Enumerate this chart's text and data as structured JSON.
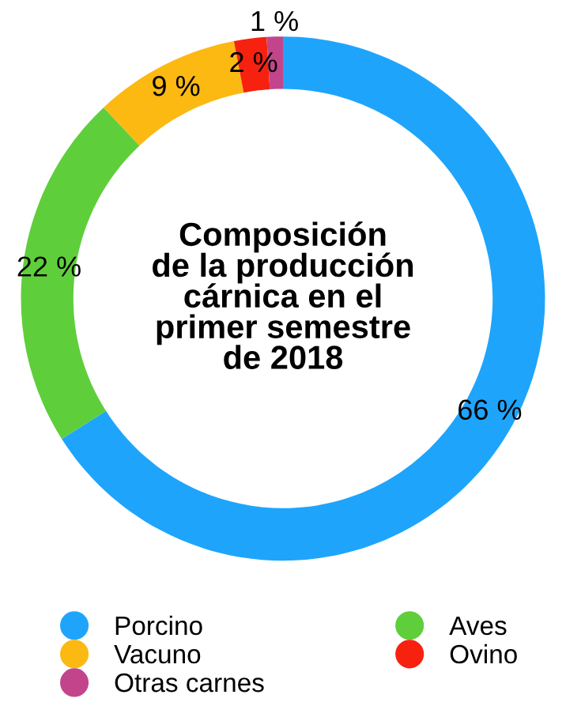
{
  "chart_data": {
    "type": "donut",
    "title": "Composición\nde la producción\ncárnica en el\nprimer semestre\nde 2018",
    "categories": [
      "Porcino",
      "Aves",
      "Vacuno",
      "Ovino",
      "Otras carnes"
    ],
    "values": [
      66,
      22,
      9,
      2,
      1
    ],
    "colors": [
      "#1ea5fb",
      "#5fce3b",
      "#fbb912",
      "#f7210f",
      "#c2458b"
    ],
    "value_labels": [
      "66 %",
      "22 %",
      "9 %",
      "2 %",
      "1 %"
    ],
    "legend": "bottom"
  }
}
